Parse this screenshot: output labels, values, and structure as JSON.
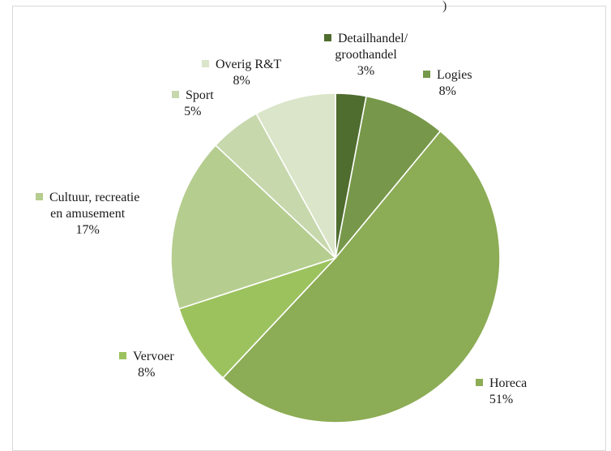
{
  "header_fragment": ")",
  "chart_data": {
    "type": "pie",
    "title": "",
    "slices": [
      {
        "label": "Detailhandel/\ngroothandel",
        "value": 3,
        "display": "3%",
        "color": "#4f6d2f"
      },
      {
        "label": "Logies",
        "value": 8,
        "display": "8%",
        "color": "#77984a"
      },
      {
        "label": "Horeca",
        "value": 51,
        "display": "51%",
        "color": "#8cac55"
      },
      {
        "label": "Vervoer",
        "value": 8,
        "display": "8%",
        "color": "#9cc25e"
      },
      {
        "label": "Cultuur, recreatie\nen amusement",
        "value": 17,
        "display": "17%",
        "color": "#b5cd8f"
      },
      {
        "label": "Sport",
        "value": 5,
        "display": "5%",
        "color": "#c7d8ad"
      },
      {
        "label": "Overig R&T",
        "value": 8,
        "display": "8%",
        "color": "#dae5c9"
      }
    ],
    "legend": "labels next to slices",
    "start_angle": "12 o'clock, clockwise"
  }
}
